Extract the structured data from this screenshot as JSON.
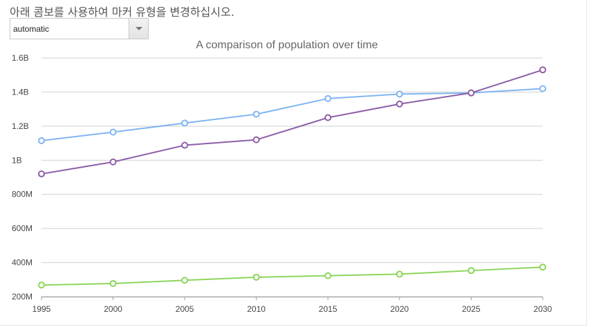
{
  "instruction": "아래 콤보를 사용하여 마커 유형을 변경하십시오.",
  "combo": {
    "selected": "automatic"
  },
  "chart_data": {
    "type": "line",
    "title": "A comparison of population over time",
    "xlabel": "",
    "ylabel": "",
    "x": [
      1995,
      2000,
      2005,
      2010,
      2015,
      2020,
      2025,
      2030
    ],
    "xticks": [
      "1995",
      "2000",
      "2005",
      "2010",
      "2015",
      "2020",
      "2025",
      "2030"
    ],
    "ylim": [
      200000000,
      1600000000
    ],
    "yticks": [
      {
        "value": 200000000,
        "label": "200M"
      },
      {
        "value": 400000000,
        "label": "400M"
      },
      {
        "value": 600000000,
        "label": "600M"
      },
      {
        "value": 800000000,
        "label": "800M"
      },
      {
        "value": 1000000000,
        "label": "1B"
      },
      {
        "value": 1200000000,
        "label": "1.2B"
      },
      {
        "value": 1400000000,
        "label": "1.4B"
      },
      {
        "value": 1600000000,
        "label": "1.6B"
      }
    ],
    "grid": true,
    "series": [
      {
        "color": "#7fb5f3",
        "values": [
          1115000000,
          1165000000,
          1218000000,
          1270000000,
          1362000000,
          1388000000,
          1395000000,
          1420000000
        ]
      },
      {
        "color": "#8e5ea8",
        "values": [
          920000000,
          990000000,
          1088000000,
          1120000000,
          1250000000,
          1330000000,
          1395000000,
          1530000000
        ]
      },
      {
        "color": "#8bd65a",
        "values": [
          268000000,
          277000000,
          296000000,
          314000000,
          323000000,
          332000000,
          353000000,
          373000000
        ]
      }
    ]
  }
}
